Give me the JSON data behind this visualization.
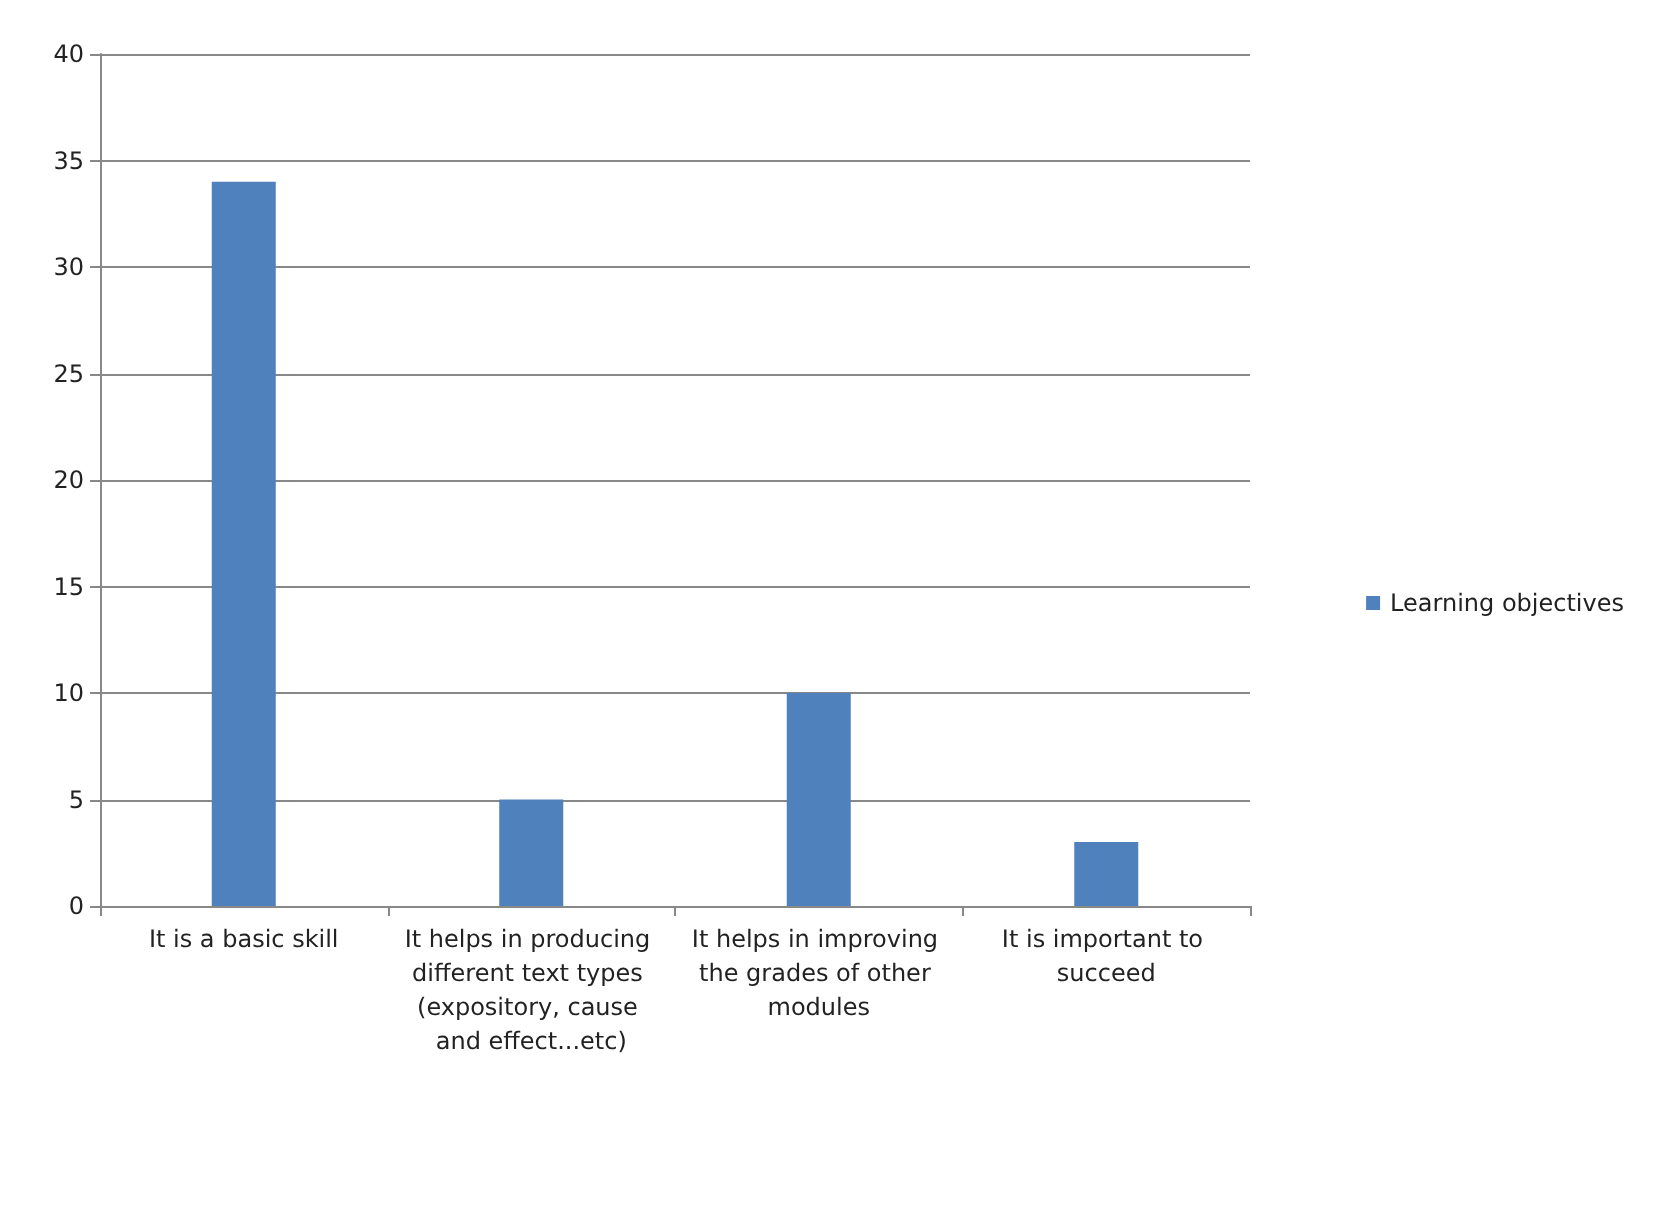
{
  "chart_data": {
    "type": "bar",
    "categories": [
      "It is a basic skill",
      "It helps in producing different text types (expository, cause and effect...etc)",
      "It helps in improving the grades of other modules",
      "It is important to succeed"
    ],
    "series": [
      {
        "name": "Learning objectives",
        "color": "#4f81bd",
        "values": [
          34,
          5,
          10,
          3
        ]
      }
    ],
    "ylim": [
      0,
      40
    ],
    "yticks": [
      0,
      5,
      10,
      15,
      20,
      25,
      30,
      35,
      40
    ],
    "grid": "y",
    "legend": "right"
  }
}
